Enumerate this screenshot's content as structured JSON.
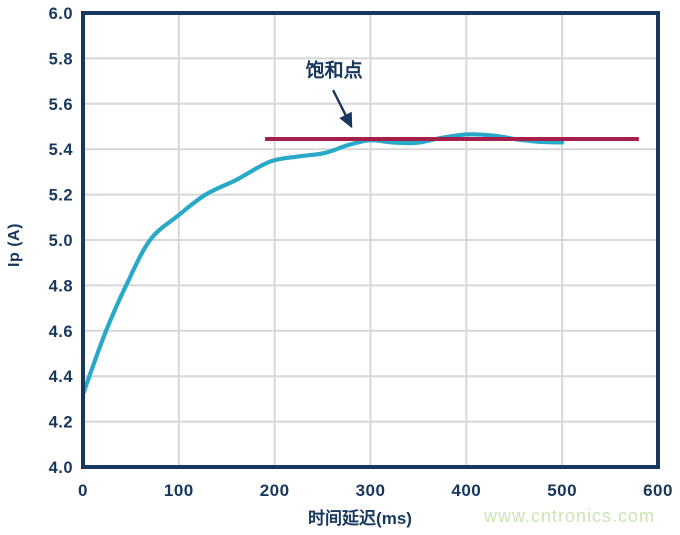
{
  "watermark": {
    "text": "www.cntronics.com",
    "color": "#cbe5b4"
  },
  "style": {
    "axis_color": "#17375E",
    "grid_color": "#D7D7D7",
    "background": "#FFFFFF",
    "curve_color": "#29A9C8",
    "saturation_line_color": "#A81E4A"
  },
  "chart_data": {
    "type": "line",
    "title": "",
    "xlabel": "时间延迟(ms)",
    "ylabel": "Ip (A)",
    "xlim": [
      0,
      600
    ],
    "ylim": [
      4.0,
      6.0
    ],
    "grid": true,
    "legend": "none",
    "x_ticks": [
      {
        "v": 0,
        "label": "0"
      },
      {
        "v": 100,
        "label": "100"
      },
      {
        "v": 200,
        "label": "200"
      },
      {
        "v": 300,
        "label": "300"
      },
      {
        "v": 400,
        "label": "400"
      },
      {
        "v": 500,
        "label": "500"
      },
      {
        "v": 600,
        "label": "600"
      }
    ],
    "y_ticks": [
      {
        "v": 4.0,
        "label": "4.0"
      },
      {
        "v": 4.2,
        "label": "4.2"
      },
      {
        "v": 4.4,
        "label": "4.4"
      },
      {
        "v": 4.6,
        "label": "4.6"
      },
      {
        "v": 4.8,
        "label": "4.8"
      },
      {
        "v": 5.0,
        "label": "5.0"
      },
      {
        "v": 5.2,
        "label": "5.2"
      },
      {
        "v": 5.4,
        "label": "5.4"
      },
      {
        "v": 5.6,
        "label": "5.6"
      },
      {
        "v": 5.8,
        "label": "5.8"
      },
      {
        "v": 6.0,
        "label": "6.0"
      }
    ],
    "series": [
      {
        "name": "ip-curve",
        "color": "#29A9C8",
        "width": 4.2,
        "smooth": true,
        "points": [
          [
            0,
            4.32
          ],
          [
            10,
            4.44
          ],
          [
            25,
            4.61
          ],
          [
            45,
            4.8
          ],
          [
            70,
            5.0
          ],
          [
            100,
            5.11
          ],
          [
            128,
            5.2
          ],
          [
            160,
            5.265
          ],
          [
            195,
            5.345
          ],
          [
            225,
            5.368
          ],
          [
            252,
            5.383
          ],
          [
            278,
            5.42
          ],
          [
            300,
            5.44
          ],
          [
            322,
            5.43
          ],
          [
            348,
            5.428
          ],
          [
            372,
            5.448
          ],
          [
            400,
            5.465
          ],
          [
            428,
            5.46
          ],
          [
            455,
            5.442
          ],
          [
            478,
            5.432
          ],
          [
            500,
            5.43
          ]
        ]
      },
      {
        "name": "saturation-level-line",
        "color": "#A81E4A",
        "width": 4,
        "smooth": false,
        "points": [
          [
            190,
            5.445
          ],
          [
            580,
            5.445
          ]
        ]
      }
    ],
    "annotation": {
      "text": "饱和点",
      "text_pos": [
        262,
        5.72
      ],
      "arrow_from": [
        261,
        5.66
      ],
      "arrow_to": [
        280,
        5.5
      ],
      "color": "#17375E"
    }
  }
}
